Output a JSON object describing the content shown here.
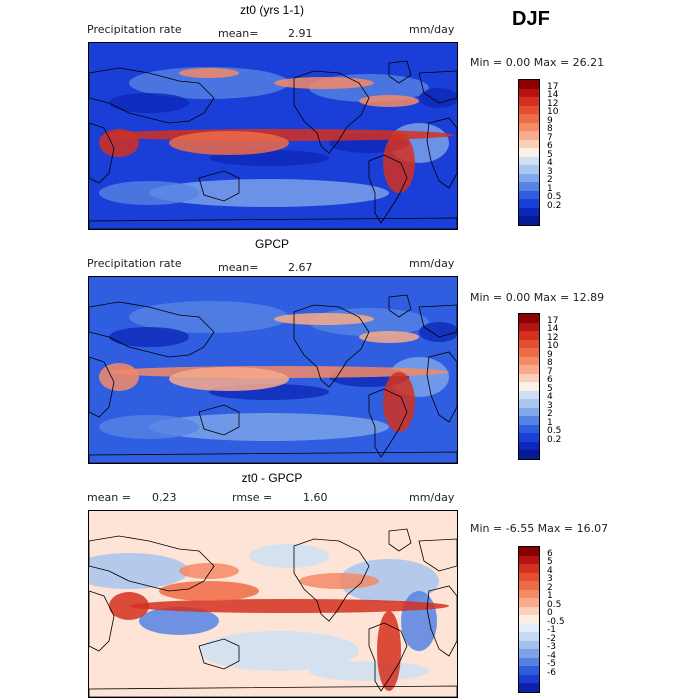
{
  "season": "DJF",
  "panels": [
    {
      "title": "zt0 (yrs 1-1)",
      "left_label": "Precipitation rate",
      "stat1_label": "mean=",
      "stat1_value": "2.91",
      "stat2_label": "",
      "stat2_value": "",
      "units": "mm/day",
      "minmax": "Min =    0.00 Max =  26.21",
      "colorbar_labels": [
        "17",
        "14",
        "12",
        "10",
        "9",
        "8",
        "7",
        "6",
        "5",
        "4",
        "3",
        "2",
        "1",
        "0.5",
        "0.2"
      ],
      "colorbar_colors": [
        "#8b0000",
        "#b51212",
        "#d4301f",
        "#e4502f",
        "#ee6b47",
        "#f48a66",
        "#f8aa8a",
        "#fbd0b8",
        "#fdf0e6",
        "#cfe0f5",
        "#a8c6ef",
        "#80a8ea",
        "#5683e4",
        "#2f5ee0",
        "#1a3fd8",
        "#0d28b8",
        "#061a96"
      ],
      "map_style": "model"
    },
    {
      "title": "GPCP",
      "left_label": "Precipitation rate",
      "stat1_label": "mean=",
      "stat1_value": "2.67",
      "stat2_label": "",
      "stat2_value": "",
      "units": "mm/day",
      "minmax": "Min =    0.00 Max =  12.89",
      "colorbar_labels": [
        "17",
        "14",
        "12",
        "10",
        "9",
        "8",
        "7",
        "6",
        "5",
        "4",
        "3",
        "2",
        "1",
        "0.5",
        "0.2"
      ],
      "colorbar_colors": [
        "#8b0000",
        "#b51212",
        "#d4301f",
        "#e4502f",
        "#ee6b47",
        "#f48a66",
        "#f8aa8a",
        "#fbd0b8",
        "#fdf0e6",
        "#cfe0f5",
        "#a8c6ef",
        "#80a8ea",
        "#5683e4",
        "#2f5ee0",
        "#1a3fd8",
        "#0d28b8",
        "#061a96"
      ],
      "map_style": "obs"
    },
    {
      "title": "zt0 - GPCP",
      "left_label": "",
      "stat1_label": "mean =",
      "stat1_value": "0.23",
      "stat2_label": "rmse =",
      "stat2_value": "1.60",
      "units": "mm/day",
      "minmax": "Min =  -6.55 Max =  16.07",
      "colorbar_labels": [
        "6",
        "5",
        "4",
        "3",
        "2",
        "1",
        "0.5",
        "0",
        "-0.5",
        "-1",
        "-2",
        "-3",
        "-4",
        "-5",
        "-6"
      ],
      "colorbar_colors": [
        "#8b0000",
        "#b51212",
        "#d4301f",
        "#e4502f",
        "#ee6b47",
        "#f48a66",
        "#f8aa8a",
        "#fbd0b8",
        "#fdeee2",
        "#e4eefa",
        "#c6daf3",
        "#a2c0ee",
        "#7ea2e8",
        "#5680e2",
        "#2f5cdc",
        "#1a3ccf",
        "#0d22a8"
      ],
      "map_style": "diff"
    }
  ]
}
